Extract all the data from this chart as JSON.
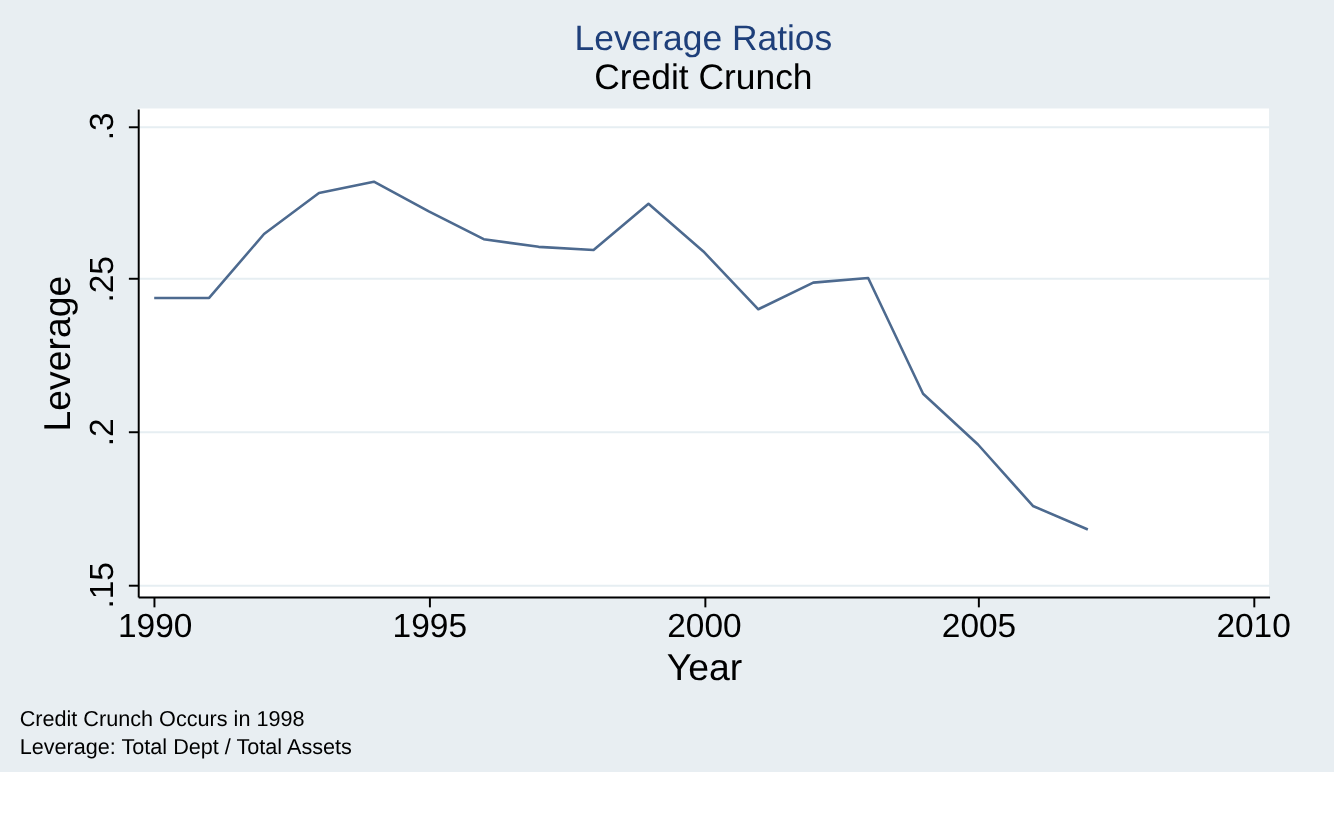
{
  "chart_data": {
    "type": "line",
    "title": "Leverage Ratios",
    "subtitle": "Credit Crunch",
    "xlabel": "Year",
    "ylabel": "Leverage",
    "x": [
      1990,
      1991,
      1992,
      1993,
      1994,
      1995,
      1996,
      1997,
      1998,
      1999,
      2000,
      2001,
      2002,
      2003,
      2004,
      2005,
      2006,
      2007
    ],
    "series": [
      {
        "color": "#4d6a8f",
        "values": [
          0.2436,
          0.2436,
          0.2645,
          0.2779,
          0.2816,
          0.2719,
          0.2628,
          0.2603,
          0.2593,
          0.2744,
          0.2588,
          0.2399,
          0.2486,
          0.2501,
          0.2123,
          0.1957,
          0.1756,
          0.1679
        ]
      }
    ],
    "xlim": [
      1989.7,
      2010.3
    ],
    "xticks": [
      1990,
      1995,
      2000,
      2005,
      2010
    ],
    "ylim": [
      0.146,
      0.3055
    ],
    "yticks": [
      {
        "value": 0.15,
        "label": ".15"
      },
      {
        "value": 0.2,
        "label": ".2"
      },
      {
        "value": 0.25,
        "label": ".25"
      },
      {
        "value": 0.3,
        "label": ".3"
      }
    ],
    "grid": "y",
    "marker": "none",
    "line_style": "solid",
    "annotations": [
      "Credit Crunch Occurs in 1998",
      "Leverage: Total Dept / Total Assets"
    ]
  }
}
